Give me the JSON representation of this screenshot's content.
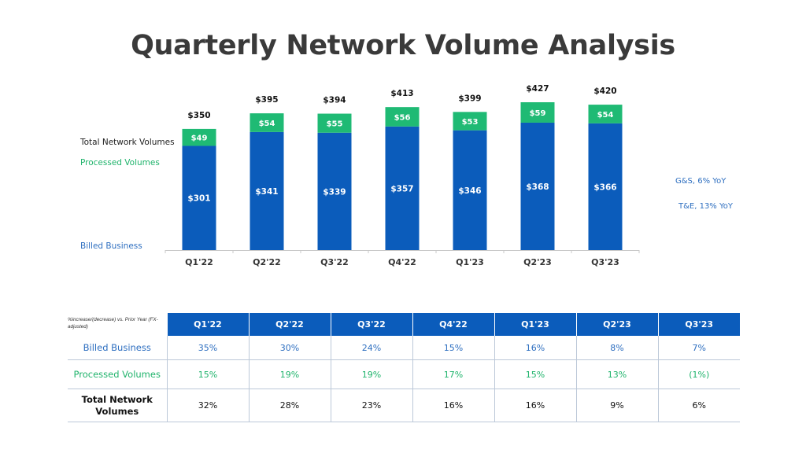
{
  "title": "Quarterly Network Volume Analysis",
  "labels": {
    "total": "Total Network Volumes",
    "processed": "Processed Volumes",
    "billed": "Billed Business"
  },
  "side_notes": {
    "gs": "G&S, 6% YoY",
    "te": "T&E, 13% YoY"
  },
  "colors": {
    "billed": "#0b5cbb",
    "processed": "#1fba74",
    "header": "#0b5cbb",
    "processed_text": "#1fb36b",
    "billed_text": "#2e6fc0"
  },
  "chart_data": {
    "type": "bar",
    "stacked": true,
    "categories": [
      "Q1'22",
      "Q2'22",
      "Q3'22",
      "Q4'22",
      "Q1'23",
      "Q2'23",
      "Q3'23"
    ],
    "series": [
      {
        "name": "Billed Business",
        "values": [
          301,
          341,
          339,
          357,
          346,
          368,
          366
        ],
        "labels": [
          "$301",
          "$341",
          "$339",
          "$357",
          "$346",
          "$368",
          "$366"
        ]
      },
      {
        "name": "Processed Volumes",
        "values": [
          49,
          54,
          55,
          56,
          53,
          59,
          54
        ],
        "labels": [
          "$49",
          "$54",
          "$55",
          "$56",
          "$53",
          "$59",
          "$54"
        ]
      }
    ],
    "totals": [
      350,
      395,
      394,
      413,
      399,
      427,
      420
    ],
    "total_labels": [
      "$350",
      "$395",
      "$394",
      "$413",
      "$399",
      "$427",
      "$420"
    ],
    "title": "",
    "xlabel": "",
    "ylabel": "",
    "ylim": [
      0,
      430
    ]
  },
  "table": {
    "note": "%increase/(decrease) vs. Prior Year (FX-adjusted)",
    "headers": [
      "Q1'22",
      "Q2'22",
      "Q3'22",
      "Q4'22",
      "Q1'23",
      "Q2'23",
      "Q3'23"
    ],
    "rows": [
      {
        "label": "Billed Business",
        "values": [
          "35%",
          "30%",
          "24%",
          "15%",
          "16%",
          "8%",
          "7%"
        ]
      },
      {
        "label": "Processed Volumes",
        "values": [
          "15%",
          "19%",
          "19%",
          "17%",
          "15%",
          "13%",
          "(1%)"
        ]
      },
      {
        "label": "Total Network Volumes",
        "values": [
          "32%",
          "28%",
          "23%",
          "16%",
          "16%",
          "9%",
          "6%"
        ]
      }
    ]
  }
}
